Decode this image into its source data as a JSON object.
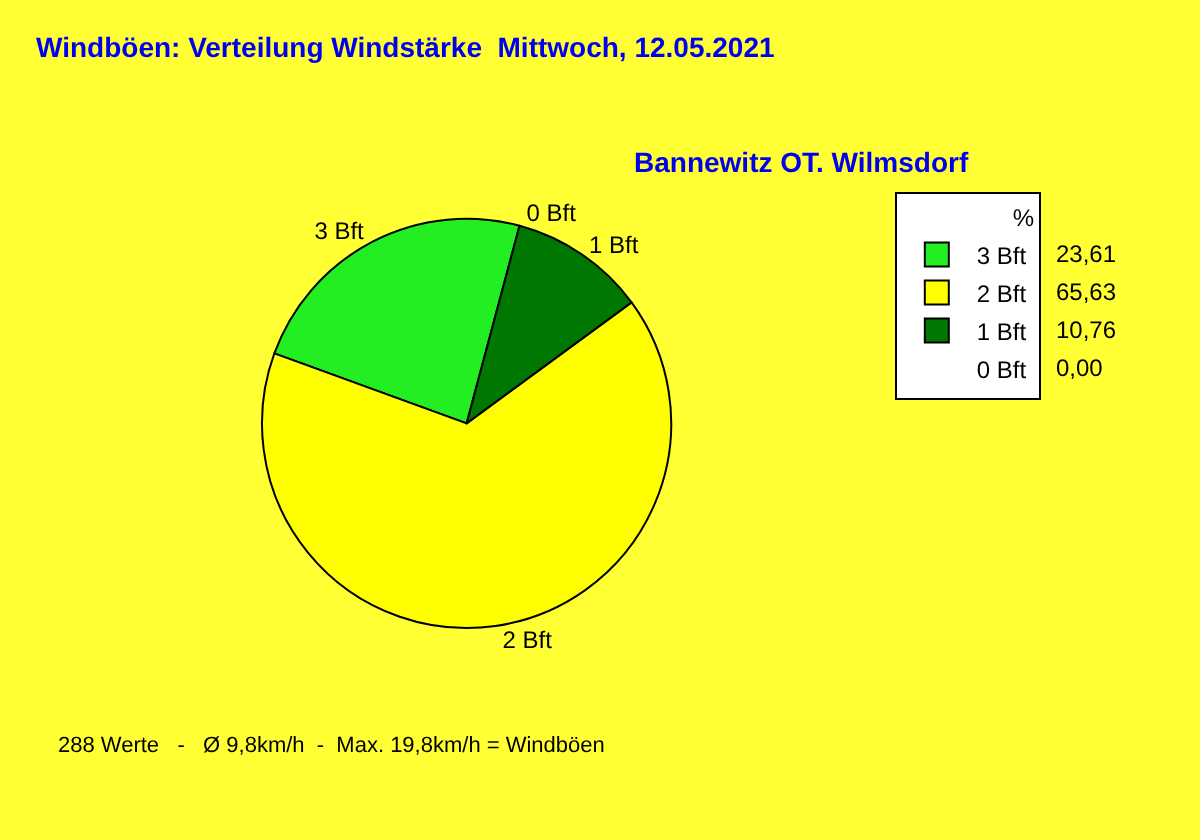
{
  "chart_data": {
    "type": "pie",
    "title": "Windböen: Verteilung Windstärke  Mittwoch, 12.05.2021",
    "subtitle": "Bannewitz OT. Wilmsdorf",
    "legend_title": "%",
    "legend": "top right",
    "categories": [
      "3 Bft",
      "2 Bft",
      "1 Bft",
      "0 Bft"
    ],
    "values": [
      23.61,
      65.63,
      10.76,
      0
    ],
    "value_labels": [
      "23,61",
      "65,63",
      "10,76",
      "0,00"
    ],
    "colors": [
      "#22ee22",
      "#ffff00",
      "#007700",
      "#ffffff"
    ],
    "annotations": [
      "288 Werte   -   Ø 9,8km/h  -  Max. 19,8km/h = Windböen"
    ]
  }
}
